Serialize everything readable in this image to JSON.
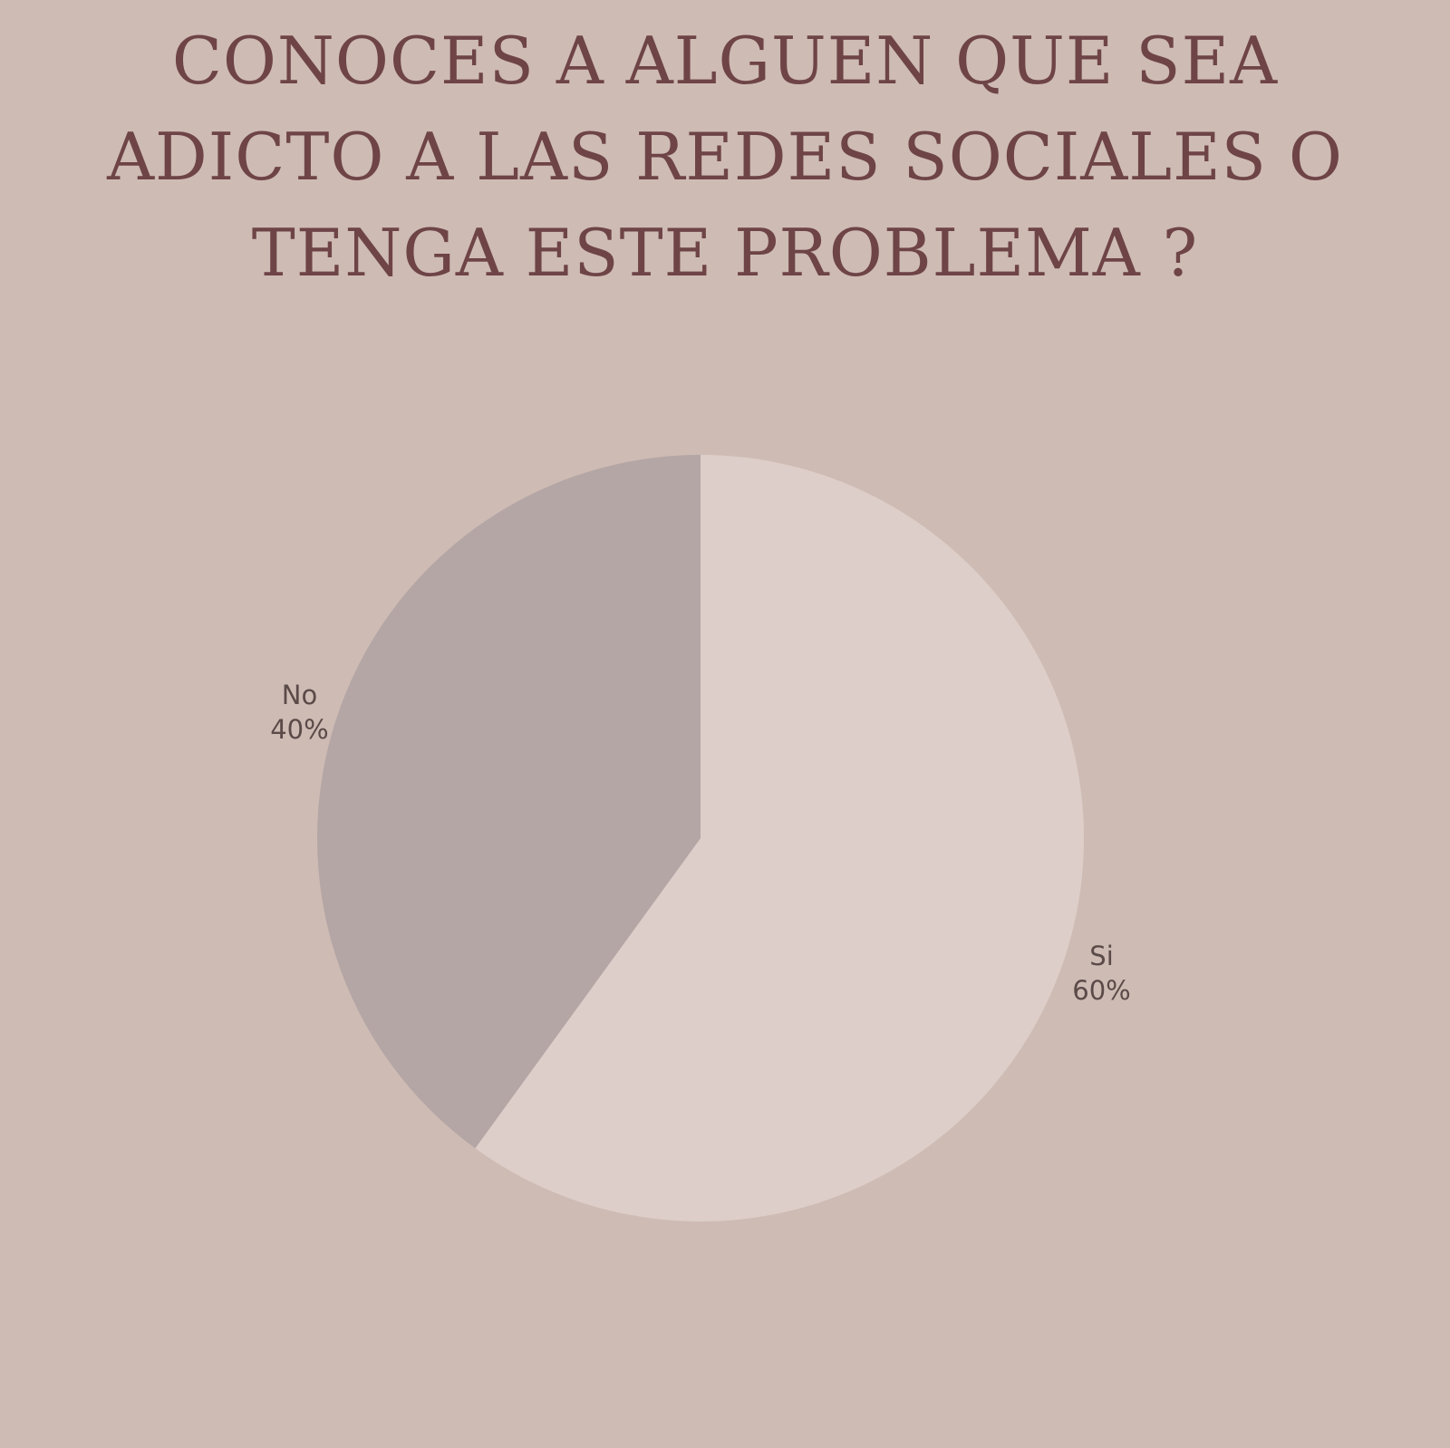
{
  "chart_data": {
    "type": "pie",
    "title_lines": [
      "CONOCES A ALGUEN QUE SEA",
      "ADICTO A LAS REDES SOCIALES O",
      "TENGA ESTE PROBLEMA ?"
    ],
    "slices": [
      {
        "label": "Si",
        "value": 60,
        "display": "60%",
        "color": "#ddcec9"
      },
      {
        "label": "No",
        "value": 40,
        "display": "40%",
        "color": "#b4a6a5"
      }
    ],
    "start": "12 o'clock",
    "direction": "clockwise",
    "legend": "none",
    "background_color": "#cebbb4",
    "title_color": "#6e4446"
  }
}
